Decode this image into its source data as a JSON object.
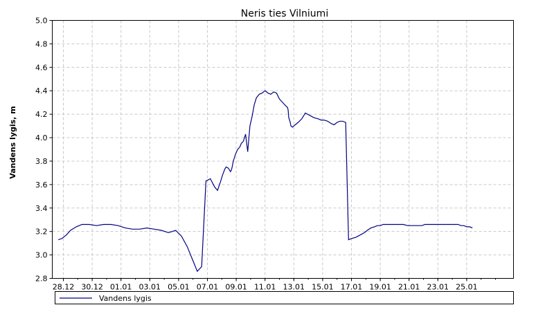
{
  "chart_data": {
    "type": "line",
    "title": "Neris ties Vilniumi",
    "ylabel": "Vandens lygis, m",
    "xlabel": "",
    "ylim": [
      2.8,
      5.0
    ],
    "grid": true,
    "legend_position": "bottom",
    "x_tick_labels": [
      "28.12",
      "30.12",
      "01.01",
      "03.01",
      "05.01",
      "07.01",
      "09.01",
      "11.01",
      "13.01",
      "15.01",
      "17.01",
      "19.01",
      "21.01",
      "23.01",
      "25.01"
    ],
    "y_tick_labels": [
      "2.8",
      "3.0",
      "3.2",
      "3.4",
      "3.6",
      "3.8",
      "4.0",
      "4.2",
      "4.4",
      "4.6",
      "4.8",
      "5.0"
    ],
    "x_unit": "days from 28.12",
    "series": [
      {
        "name": "Vandens lygis",
        "color": "#000080",
        "x": [
          -0.35,
          -0.1,
          0.2,
          0.5,
          0.9,
          1.3,
          1.8,
          2.3,
          2.8,
          3.3,
          3.8,
          4.3,
          4.8,
          5.3,
          5.8,
          6.3,
          6.8,
          7.3,
          7.8,
          8.2,
          8.6,
          9.0,
          9.3,
          9.6,
          9.9,
          10.2,
          10.5,
          10.7,
          10.9,
          11.05,
          11.2,
          11.3,
          11.45,
          11.6,
          11.65,
          11.7,
          11.8,
          11.95,
          12.1,
          12.25,
          12.35,
          12.5,
          12.65,
          12.8,
          12.95,
          13.1,
          13.25,
          13.4,
          13.6,
          13.8,
          14.0,
          14.2,
          14.4,
          14.6,
          14.8,
          15.0,
          15.15,
          15.3,
          15.45,
          15.55,
          15.6,
          15.65,
          15.7,
          15.75,
          15.8,
          15.9,
          16.1,
          16.3,
          16.55,
          16.8,
          17.1,
          17.4,
          17.7,
          17.9,
          18.1,
          18.35,
          18.6,
          18.8,
          19.0,
          19.2,
          19.4,
          19.6,
          19.8,
          20.0,
          20.3,
          20.6,
          20.9,
          21.1,
          21.35,
          21.6,
          21.8,
          22.0,
          22.2,
          22.4,
          22.6,
          22.8,
          23.0,
          23.3,
          23.6,
          23.9,
          24.1,
          24.3,
          24.5,
          24.7,
          24.9,
          25.1,
          25.3,
          25.5,
          25.8,
          26.1,
          26.4,
          26.7,
          27.0,
          27.2,
          27.4,
          27.6,
          27.8,
          28.0,
          28.2,
          28.4
        ],
        "y": [
          3.13,
          3.14,
          3.17,
          3.21,
          3.24,
          3.26,
          3.26,
          3.25,
          3.26,
          3.26,
          3.25,
          3.23,
          3.22,
          3.22,
          3.23,
          3.22,
          3.21,
          3.19,
          3.21,
          3.16,
          3.07,
          2.95,
          2.86,
          2.9,
          3.63,
          3.65,
          3.58,
          3.55,
          3.62,
          3.68,
          3.73,
          3.75,
          3.74,
          3.71,
          3.72,
          3.74,
          3.8,
          3.86,
          3.9,
          3.92,
          3.95,
          3.97,
          4.03,
          3.88,
          4.1,
          4.18,
          4.28,
          4.34,
          4.37,
          4.38,
          4.4,
          4.38,
          4.37,
          4.39,
          4.38,
          4.33,
          4.31,
          4.29,
          4.27,
          4.26,
          4.24,
          4.17,
          4.15,
          4.13,
          4.1,
          4.09,
          4.11,
          4.13,
          4.16,
          4.21,
          4.19,
          4.17,
          4.16,
          4.15,
          4.15,
          4.14,
          4.12,
          4.11,
          4.13,
          4.14,
          4.14,
          4.13,
          3.13,
          3.14,
          3.15,
          3.17,
          3.19,
          3.21,
          3.23,
          3.24,
          3.25,
          3.25,
          3.26,
          3.26,
          3.26,
          3.26,
          3.26,
          3.26,
          3.26,
          3.25,
          3.25,
          3.25,
          3.25,
          3.25,
          3.25,
          3.26,
          3.26,
          3.26,
          3.26,
          3.26,
          3.26,
          3.26,
          3.26,
          3.26,
          3.26,
          3.25,
          3.25,
          3.24,
          3.24,
          3.23
        ]
      }
    ]
  }
}
